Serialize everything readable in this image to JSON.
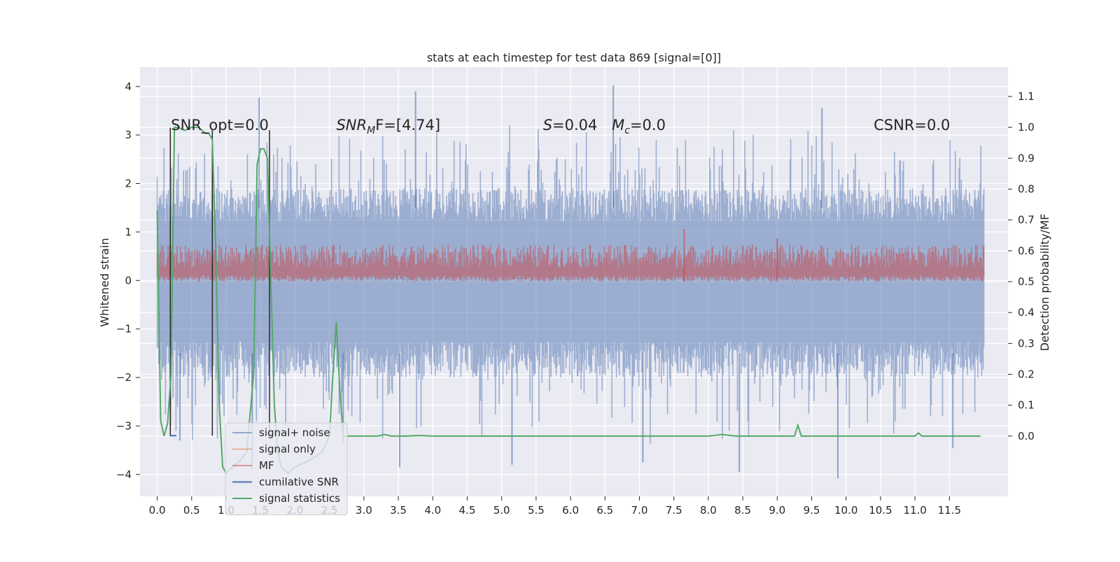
{
  "chart_data": {
    "type": "line",
    "title": "stats at each timestep for test data 869 [signal=[0]]",
    "xlabel": "",
    "ylabel": "Whitened strain",
    "ylabel_right": "Detection probability/MF",
    "xlim": [
      -0.25,
      12.35
    ],
    "ylim": [
      -4.45,
      4.4
    ],
    "ylim_right": [
      -0.195,
      1.195
    ],
    "x_ticks": [
      "0.0",
      "0.5",
      "1.0",
      "1.5",
      "2.0",
      "2.5",
      "3.0",
      "3.5",
      "4.0",
      "4.5",
      "5.0",
      "5.5",
      "6.0",
      "6.5",
      "7.0",
      "7.5",
      "8.0",
      "8.5",
      "9.0",
      "9.5",
      "10.0",
      "10.5",
      "11.0",
      "11.5"
    ],
    "y_ticks": [
      "−4",
      "−3",
      "−2",
      "−1",
      "0",
      "1",
      "2",
      "3",
      "4"
    ],
    "y_ticks_right": [
      "0.0",
      "0.1",
      "0.2",
      "0.3",
      "0.4",
      "0.5",
      "0.6",
      "0.7",
      "0.8",
      "0.9",
      "1.0",
      "1.1"
    ],
    "grid": true,
    "background": "#EAEAF2",
    "legend_position": "lower-left",
    "annotations": [
      {
        "text": "SNR_opt=0.0",
        "x": 0.2,
        "y": 3.1
      },
      {
        "text": "SNR",
        "sub": "M",
        "suffix": "F=[4.74]",
        "italic": true,
        "x": 2.6,
        "y": 3.1
      },
      {
        "text": "S",
        "suffix": "=0.04",
        "italic": true,
        "x": 5.6,
        "y": 3.1
      },
      {
        "text": "M",
        "sub": "c",
        "suffix": "=0.0",
        "italic": true,
        "x": 6.6,
        "y": 3.1
      },
      {
        "text": "CSNR=0.0",
        "x": 10.4,
        "y": 3.1
      }
    ],
    "series": [
      {
        "name": "signal+ noise",
        "color": "#4C72B0",
        "alpha": 0.5,
        "x_range": [
          0.0,
          12.0
        ],
        "envelope": {
          "typical_upper": 1.9,
          "typical_lower": -2.0,
          "peak_upper": 4.0,
          "peak_lower": -4.1
        },
        "spikes": [
          {
            "x": 1.48,
            "y": 3.77
          },
          {
            "x": 3.75,
            "y": 3.9
          },
          {
            "x": 6.62,
            "y": 4.02
          },
          {
            "x": 9.65,
            "y": 3.55
          },
          {
            "x": 3.52,
            "y": -3.85
          },
          {
            "x": 5.15,
            "y": -3.8
          },
          {
            "x": 7.05,
            "y": -3.75
          },
          {
            "x": 8.45,
            "y": -3.95
          },
          {
            "x": 9.88,
            "y": -4.08
          },
          {
            "x": 11.55,
            "y": -3.45
          },
          {
            "x": 1.38,
            "y": -3.9
          },
          {
            "x": 0.33,
            "y": -3.3
          },
          {
            "x": 2.7,
            "y": -3.35
          }
        ]
      },
      {
        "name": "signal only",
        "color": "#DD8452",
        "values": []
      },
      {
        "name": "MF",
        "color": "#C44E52",
        "alpha": 0.5,
        "axis": "right",
        "x_range": [
          0.0,
          12.0
        ],
        "band": [
          0.5,
          0.62
        ],
        "spikes": [
          {
            "x": 7.65,
            "y": 0.67
          },
          {
            "x": 9.0,
            "y": 0.64
          }
        ]
      },
      {
        "name": "cumilative SNR",
        "color": "#4C72B0",
        "axis": "left",
        "x": [
          0.18,
          0.19,
          0.2,
          0.21,
          0.22,
          0.23,
          0.24,
          0.25,
          0.26,
          0.27,
          0.28
        ],
        "y": [
          -3.2,
          -3.2,
          -3.2,
          -3.2,
          -3.2,
          -3.2,
          -3.2,
          -3.2,
          -3.2,
          -3.2,
          -3.2
        ]
      },
      {
        "name": "signal statistics",
        "color": "#55A868",
        "axis": "right",
        "x": [
          0.0,
          0.05,
          0.1,
          0.15,
          0.2,
          0.25,
          0.3,
          0.4,
          0.5,
          0.6,
          0.7,
          0.75,
          0.8,
          0.85,
          0.9,
          0.95,
          1.0,
          1.1,
          1.2,
          1.3,
          1.4,
          1.45,
          1.5,
          1.55,
          1.6,
          1.65,
          1.7,
          1.75,
          1.8,
          1.9,
          2.0,
          2.2,
          2.4,
          2.5,
          2.55,
          2.6,
          2.65,
          2.7,
          3.0,
          3.2,
          3.3,
          3.4,
          3.6,
          3.8,
          4.0,
          5.0,
          6.0,
          7.0,
          8.0,
          8.2,
          8.4,
          9.0,
          9.25,
          9.3,
          9.35,
          9.4,
          9.6,
          10.0,
          11.0,
          11.05,
          11.1,
          11.5,
          11.95
        ],
        "y": [
          0.73,
          0.05,
          0.0,
          0.04,
          0.2,
          1.0,
          1.0,
          0.99,
          1.0,
          1.0,
          0.98,
          0.98,
          0.96,
          0.6,
          0.1,
          -0.1,
          -0.12,
          -0.1,
          -0.08,
          -0.05,
          0.2,
          0.88,
          0.93,
          0.93,
          0.9,
          0.5,
          0.1,
          -0.05,
          -0.1,
          -0.12,
          -0.1,
          -0.08,
          -0.05,
          0.0,
          0.2,
          0.37,
          0.15,
          0.0,
          0.0,
          0.0,
          0.005,
          0.0,
          0.0,
          0.002,
          0.0,
          0.0,
          0.0,
          0.0,
          0.0,
          0.005,
          0.0,
          0.0,
          0.0,
          0.035,
          0.0,
          0.0,
          0.0,
          0.0,
          0.0,
          0.01,
          0.0,
          0.0,
          0.0
        ]
      }
    ],
    "vertical_lines": [
      {
        "color": "#262626",
        "x": 0.19,
        "y_bottom": -3.2,
        "y_top": 3.15
      },
      {
        "color": "#262626",
        "x": 0.8,
        "y_bottom": -3.2,
        "y_top": 3.1
      },
      {
        "color": "#262626",
        "x": 1.63,
        "y_bottom": -3.2,
        "y_top": 3.1
      }
    ]
  },
  "legend": {
    "items": [
      {
        "label": "signal+ noise",
        "color": "#4C72B0",
        "alpha": 0.55
      },
      {
        "label": "signal only",
        "color": "#DD8452",
        "alpha": 0.55
      },
      {
        "label": "MF",
        "color": "#C44E52",
        "alpha": 0.55
      },
      {
        "label": "cumilative SNR",
        "color": "#4C72B0",
        "alpha": 1
      },
      {
        "label": "signal statistics",
        "color": "#55A868",
        "alpha": 1
      }
    ]
  }
}
